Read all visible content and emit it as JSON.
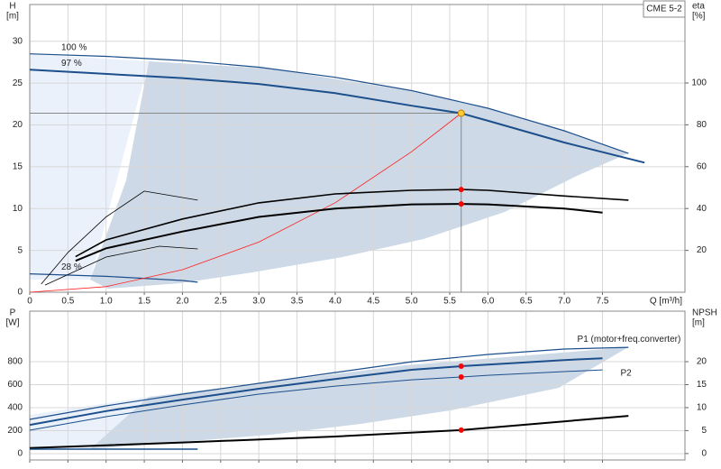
{
  "chart_data": [
    {
      "type": "line",
      "y_label": "H",
      "y_unit": "[m]",
      "y2_label": "eta",
      "y2_unit": "[%]",
      "x_label": "Q [m³/h]",
      "annotation": "CME 5-2",
      "xlim": [
        0,
        8.58
      ],
      "ylim": [
        0,
        34.4
      ],
      "y2lim": [
        0,
        137.5
      ],
      "grid": true,
      "xticks": [
        0,
        0.5,
        {
          "value": 1,
          "label": "1.0"
        },
        1.5,
        {
          "value": 2,
          "label": "2.0"
        },
        2.5,
        {
          "value": 3,
          "label": "3.0"
        },
        3.5,
        {
          "value": 4,
          "label": "4.0"
        },
        4.5,
        {
          "value": 5,
          "label": "5.0"
        },
        5.5,
        {
          "value": 6,
          "label": "6.0"
        },
        6.5,
        {
          "value": 7,
          "label": "7.0"
        },
        7.5
      ],
      "yticks": [
        0,
        5,
        10,
        15,
        20,
        25,
        30
      ],
      "y2ticks": [
        20,
        40,
        60,
        80,
        100
      ],
      "series": [
        {
          "name": "100 %",
          "color": "#1c4f8c",
          "line_width": 1.2,
          "x": [
            0,
            1,
            2,
            3,
            4,
            5,
            6,
            7,
            7.84
          ],
          "values": [
            28.5,
            28.2,
            27.7,
            26.9,
            25.7,
            24.1,
            22.0,
            19.3,
            16.6
          ]
        },
        {
          "name": "97 %",
          "color": "#1c4f8c",
          "line_width": 2,
          "x": [
            0,
            1.6,
            2,
            3,
            4,
            5,
            5.65,
            6,
            7,
            8.05
          ],
          "values": [
            26.6,
            25.8,
            25.6,
            24.9,
            23.8,
            22.3,
            21.4,
            20.5,
            17.9,
            15.5
          ]
        },
        {
          "name": "28 %",
          "color": "#1c4f8c",
          "line_width": 1.2,
          "x": [
            0,
            1,
            2,
            2.2
          ],
          "values": [
            2.2,
            1.9,
            1.4,
            1.2
          ]
        },
        {
          "color": "#ff2020",
          "line_width": 0.8,
          "x": [
            0,
            1,
            2,
            3,
            4,
            5,
            5.65
          ],
          "values": [
            0,
            0.67,
            2.7,
            6.0,
            10.7,
            16.8,
            21.4
          ]
        },
        {
          "color": "#000000",
          "line_width": 2,
          "axis": "y2",
          "x": [
            0.6,
            1,
            2,
            3,
            4,
            5,
            5.65,
            6,
            7,
            7.5
          ],
          "values": [
            15,
            21,
            29,
            36,
            40,
            42,
            42.2,
            42,
            40,
            38
          ]
        },
        {
          "color": "#000000",
          "line_width": 1.6,
          "axis": "y2",
          "x": [
            0.6,
            1,
            2,
            3,
            4,
            5,
            5.65,
            6,
            7,
            7.84
          ],
          "values": [
            17,
            25,
            35,
            42.7,
            47,
            48.7,
            49.1,
            48.7,
            46,
            44
          ]
        },
        {
          "color": "#000000",
          "line_width": 0.8,
          "axis": "y2",
          "x": [
            0.15,
            0.5,
            1,
            1.5,
            2.2
          ],
          "values": [
            3.9,
            19,
            36,
            48.3,
            44
          ]
        },
        {
          "color": "#000000",
          "line_width": 0.8,
          "axis": "y2",
          "x": [
            0.2,
            1,
            1.7,
            2.2
          ],
          "values": [
            3.4,
            16.8,
            22,
            20.7
          ]
        }
      ],
      "points": [
        {
          "x": 5.65,
          "y": 21.4,
          "color": "#ffcc33"
        },
        {
          "x": 5.65,
          "y": 49.1,
          "axis": "y2",
          "color": "#ff0000"
        },
        {
          "x": 5.65,
          "y": 42.2,
          "axis": "y2",
          "color": "#ff0000"
        }
      ]
    },
    {
      "type": "line",
      "y_label": "P",
      "y_unit": "[W]",
      "y2_label": "NPSH",
      "y2_unit": "[m]",
      "xlim": [
        0,
        8.58
      ],
      "ylim": [
        -55,
        1240
      ],
      "y2lim": [
        -1.4,
        31
      ],
      "grid": true,
      "yticks": [
        0,
        200,
        400,
        600,
        800
      ],
      "y2ticks": [
        0,
        5,
        10,
        15,
        20
      ],
      "series": [
        {
          "name": "P1 (motor+freq.converter)",
          "color": "#1c4f8c",
          "line_width": 1.2,
          "x": [
            0,
            1,
            2,
            3,
            4,
            5,
            6,
            7,
            7.84
          ],
          "values": [
            298,
            416,
            518,
            612,
            706,
            800,
            863,
            910,
            925
          ]
        },
        {
          "color": "#1c4f8c",
          "line_width": 2,
          "x": [
            0,
            1,
            2,
            3,
            4,
            5,
            5.65,
            6,
            7,
            7.5
          ],
          "values": [
            250,
            370,
            470,
            565,
            650,
            730,
            761,
            775,
            815,
            830
          ]
        },
        {
          "name": "P2",
          "color": "#1c4f8c",
          "line_width": 1,
          "x": [
            0,
            1,
            2,
            3,
            4,
            5,
            5.65,
            6,
            7,
            7.5
          ],
          "values": [
            204,
            322,
            424,
            518,
            588,
            643,
            667,
            682,
            714,
            729
          ]
        },
        {
          "color": "#000000",
          "line_width": 2,
          "axis": "y2",
          "x": [
            0,
            2,
            4,
            5.65,
            7.84
          ],
          "values": [
            1.2,
            2.4,
            3.7,
            5.1,
            8.2
          ]
        },
        {
          "color": "#1c4f8c",
          "line_width": 1.6,
          "x": [
            0,
            2.2
          ],
          "values": [
            39,
            39
          ]
        }
      ],
      "points": [
        {
          "x": 5.65,
          "y": 761,
          "color": "#ff0000"
        },
        {
          "x": 5.65,
          "y": 667,
          "color": "#ff0000"
        },
        {
          "x": 5.65,
          "y": 5.1,
          "axis": "y2",
          "color": "#ff0000"
        }
      ]
    }
  ]
}
